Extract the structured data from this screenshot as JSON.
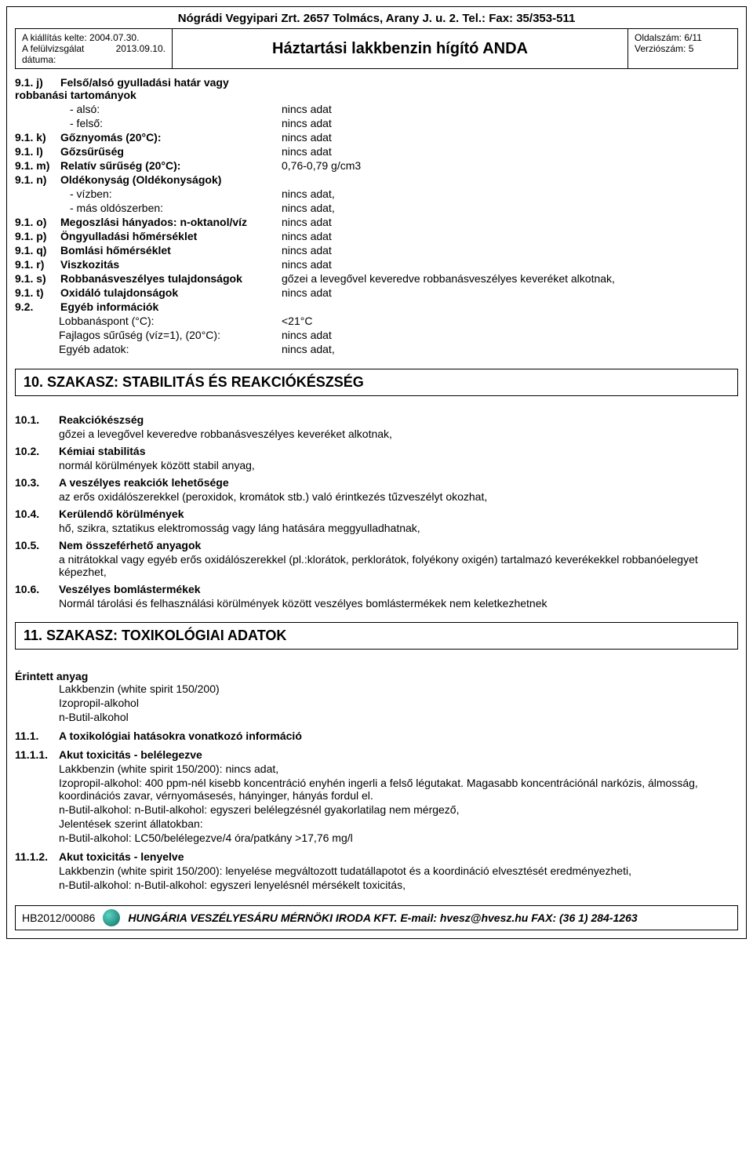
{
  "company_header": "Nógrádi Vegyipari Zrt. 2657 Tolmács, Arany J. u. 2. Tel.:  Fax: 35/353-511",
  "header_left": {
    "l1": "A kiállítás kelte:  2004.07.30.",
    "l2a": "A felülvizsgálat",
    "l2b": "2013.09.10.",
    "l3": "dátuma:"
  },
  "title": "Háztartási lakkbenzin hígító ANDA",
  "header_right": {
    "page": "Oldalszám:  6/11",
    "ver": "Verziószám: 5"
  },
  "props": [
    {
      "num": "9.1. j)",
      "label": "Felső/alsó gyulladási határ vagy robbanási tartományok",
      "val": "",
      "bold": true
    },
    {
      "indent": true,
      "label": "- alsó:",
      "val": "nincs adat"
    },
    {
      "indent": true,
      "label": "- felső:",
      "val": "nincs adat"
    },
    {
      "num": "9.1. k)",
      "label": "Gőznyomás (20°C):",
      "val": "nincs adat",
      "bold": true
    },
    {
      "num": "9.1. l)",
      "label": "Gőzsűrűség",
      "val": "nincs adat",
      "bold": true
    },
    {
      "num": "9.1. m)",
      "label": "Relatív sűrűség (20°C):",
      "val": "0,76-0,79 g/cm3",
      "bold": true,
      "labelonly": false
    },
    {
      "num": "9.1. n)",
      "label": "Oldékonyság (Oldékonyságok)",
      "val": "",
      "bold": true
    },
    {
      "indent": true,
      "label": "- vízben:",
      "val": "nincs adat,"
    },
    {
      "indent": true,
      "label": "- más oldószerben:",
      "val": "nincs adat,"
    },
    {
      "num": "9.1. o)",
      "label": "Megoszlási hányados: n-oktanol/víz",
      "val": "nincs adat",
      "bold": true
    },
    {
      "num": "9.1. p)",
      "label": "Öngyulladási hőmérséklet",
      "val": "nincs adat",
      "bold": true
    },
    {
      "num": "9.1. q)",
      "label": "Bomlási hőmérséklet",
      "val": "nincs adat",
      "bold": true
    },
    {
      "num": "9.1. r)",
      "label": "Viszkozitás",
      "val": "nincs adat",
      "bold": true
    },
    {
      "num": "9.1. s)",
      "label": "Robbanásveszélyes tulajdonságok",
      "val": "gőzei a levegővel keveredve robbanásveszélyes keveréket alkotnak,",
      "bold": true
    },
    {
      "num": "9.1. t)",
      "label": "Oxidáló tulajdonságok",
      "val": "nincs adat",
      "bold": true
    },
    {
      "num": "9.2.",
      "label": "Egyéb információk",
      "val": "",
      "bold": true
    },
    {
      "indent": true,
      "label": "Lobbanáspont (°C):",
      "val": "<21°C",
      "pad": "56"
    },
    {
      "indent": true,
      "label": "Fajlagos sűrűség (víz=1), (20°C):",
      "val": "nincs adat",
      "pad": "56"
    },
    {
      "indent": true,
      "label": "Egyéb adatok:",
      "val": "nincs adat,",
      "pad": "56"
    }
  ],
  "section10": {
    "title": "10. SZAKASZ: STABILITÁS ÉS REAKCIÓKÉSZSÉG",
    "items": [
      {
        "num": "10.1.",
        "head": "Reakciókészség",
        "body": "gőzei a levegővel keveredve robbanásveszélyes keveréket alkotnak,"
      },
      {
        "num": "10.2.",
        "head": "Kémiai stabilitás",
        "body": "normál körülmények között stabil anyag,"
      },
      {
        "num": "10.3.",
        "head": "A veszélyes reakciók lehetősége",
        "body": "az erős oxidálószerekkel (peroxidok, kromátok stb.) való érintkezés tűzveszélyt okozhat,"
      },
      {
        "num": "10.4.",
        "head": "Kerülendő körülmények",
        "body": "hő, szikra, sztatikus elektromosság vagy láng hatására meggyulladhatnak,"
      },
      {
        "num": "10.5.",
        "head": "Nem összeférhető anyagok",
        "body": "a nitrátokkal vagy egyéb erős oxidálószerekkel (pl.:klorátok, perklorátok, folyékony oxigén) tartalmazó keverékekkel robbanóelegyet képezhet,"
      },
      {
        "num": "10.6.",
        "head": "Veszélyes bomlástermékek",
        "body": "Normál tárolási és felhasználási körülmények között veszélyes bomlástermékek nem keletkezhetnek"
      }
    ]
  },
  "section11": {
    "title": "11. SZAKASZ: TOXIKOLÓGIAI ADATOK",
    "intro_head": "Érintett anyag",
    "intro_list": [
      "Lakkbenzin (white spirit 150/200)",
      "Izopropil-alkohol",
      "n-Butil-alkohol"
    ],
    "s111": {
      "num": "11.1.",
      "head": "A toxikológiai hatásokra vonatkozó információ"
    },
    "s1111": {
      "num": "11.1.1.",
      "head": "Akut toxicitás - belélegezve",
      "lines": [
        "Lakkbenzin (white spirit 150/200): nincs adat,",
        "Izopropil-alkohol: 400 ppm-nél kisebb koncentráció enyhén ingerli a felső légutakat. Magasabb koncentrációnál narkózis, álmosság, koordinációs zavar, vérnyomásesés, hányinger, hányás fordul el.",
        "n-Butil-alkohol: n-Butil-alkohol: egyszeri belélegzésnél gyakorlatilag nem mérgező,",
        "Jelentések szerint állatokban:",
        "n-Butil-alkohol: LC50/belélegezve/4 óra/patkány      >17,76 mg/l"
      ]
    },
    "s1112": {
      "num": "11.1.2.",
      "head": "Akut toxicitás - lenyelve",
      "lines": [
        "Lakkbenzin (white spirit 150/200): lenyelése megváltozott tudatállapotot és a koordináció elvesztését eredményezheti,",
        "n-Butil-alkohol: n-Butil-alkohol: egyszeri lenyelésnél mérsékelt toxicitás,"
      ]
    }
  },
  "footer": {
    "code": "HB2012/00086",
    "text": "HUNGÁRIA VESZÉLYESÁRU MÉRNÖKI IRODA KFT. E-mail: hvesz@hvesz.hu FAX: (36 1) 284-1263"
  }
}
